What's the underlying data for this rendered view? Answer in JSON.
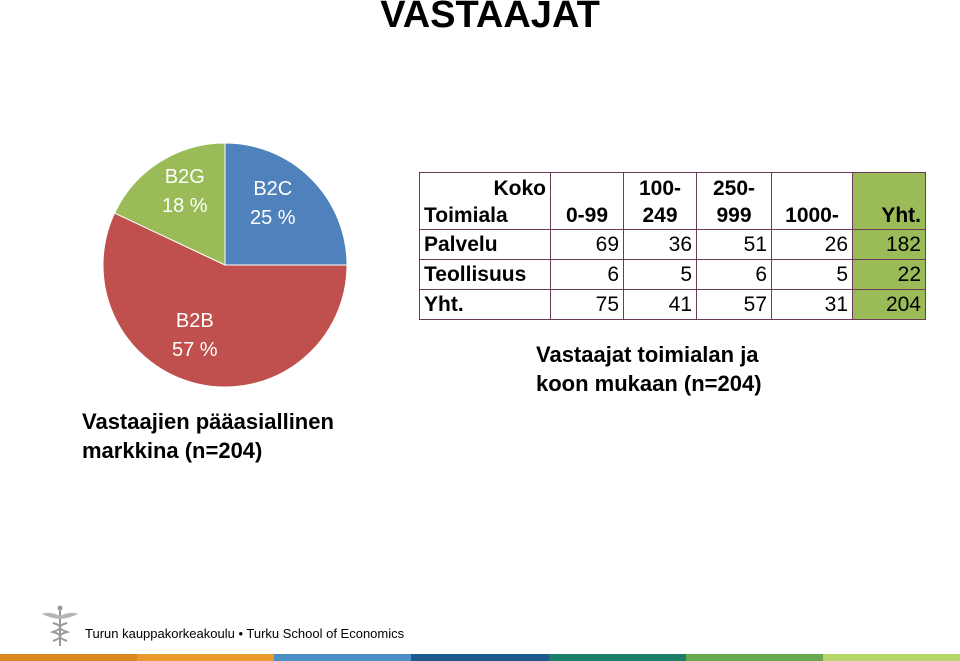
{
  "title": "VASTAAJAT",
  "chart_data": [
    {
      "type": "pie",
      "slices": [
        {
          "name": "B2C",
          "value": 25,
          "label": "25 %",
          "color": "#4f81bd"
        },
        {
          "name": "B2B",
          "value": 57,
          "label": "57 %",
          "color": "#c0504d"
        },
        {
          "name": "B2G",
          "value": 18,
          "label": "18 %",
          "color": "#9bbb59"
        }
      ],
      "caption": [
        "Vastaajien pääasiallinen",
        "markkina (n=204)"
      ]
    },
    {
      "type": "table",
      "header": [
        [
          "Koko",
          "Toimiala"
        ],
        [
          "",
          "0-99"
        ],
        [
          "100-",
          "249"
        ],
        [
          "250-",
          "999"
        ],
        [
          "",
          "1000-"
        ],
        [
          "",
          "Yht."
        ]
      ],
      "rows": [
        {
          "label": "Palvelu",
          "values": [
            "69",
            "36",
            "51",
            "26",
            "182"
          ]
        },
        {
          "label": "Teollisuus",
          "values": [
            "6",
            "5",
            "6",
            "5",
            "22"
          ]
        },
        {
          "label": "Yht.",
          "values": [
            "75",
            "41",
            "57",
            "31",
            "204"
          ]
        }
      ],
      "caption": [
        "Vastaajat toimialan ja",
        "koon mukaan (n=204)"
      ]
    }
  ],
  "footer": {
    "institution": "Turun kauppakorkeakoulu • Turku School of Economics",
    "logo_icon": "caduceus-icon",
    "bar_colors": [
      "#d9881f",
      "#e89a2d",
      "#4a8fc4",
      "#1f5a8f",
      "#1b7f6a",
      "#6aa84f",
      "#b7d66a"
    ]
  }
}
